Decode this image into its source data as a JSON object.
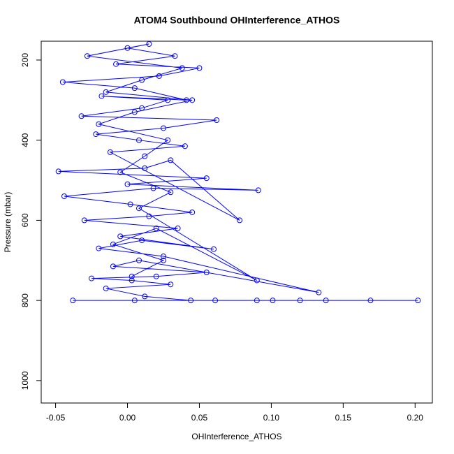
{
  "chart_data": {
    "type": "line",
    "title": "ATOM4 Southbound OHInterference_ATHOS",
    "x_label": "OHInterference_ATHOS",
    "y_label": "Pressure (mbar)",
    "xlim": [
      -0.06,
      0.212
    ],
    "ylim": [
      1056,
      153
    ],
    "grid": false,
    "marker": "open-circle",
    "xticks": [
      {
        "value": -0.05,
        "label": "-0.05"
      },
      {
        "value": 0,
        "label": "0.00"
      },
      {
        "value": 0.05,
        "label": "0.05"
      },
      {
        "value": 0.1,
        "label": "0.10"
      },
      {
        "value": 0.15,
        "label": "0.15"
      },
      {
        "value": 0.2,
        "label": "0.20"
      }
    ],
    "yticks": [
      200,
      400,
      600,
      800,
      1000
    ],
    "series": [
      {
        "color": "#0000ff",
        "x": [
          0.005,
          -0.038,
          0.202,
          0.169,
          0.138,
          0.12,
          0.101,
          0.09,
          0.061,
          0.044,
          0.012,
          -0.015,
          0.03,
          0.003,
          -0.025,
          0.02,
          0.055,
          -0.01,
          0.008,
          0.133,
          0.025,
          -0.02,
          0.01,
          0.06,
          -0.005,
          0.035,
          -0.03,
          0.015,
          0.045,
          0.002,
          -0.044,
          0.018,
          0.091,
          0.0,
          0.055,
          -0.048,
          0.012,
          0.03,
          0.078,
          -0.012,
          0.04,
          0.008,
          -0.022,
          0.025,
          0.062,
          -0.032,
          0.01,
          0.028,
          -0.018,
          0.041,
          0.005,
          -0.045,
          0.022,
          0.05,
          -0.008,
          0.033,
          0.0,
          0.015,
          -0.028,
          0.038,
          0.01,
          -0.015,
          0.045,
          0.005,
          -0.02,
          0.028,
          0.012,
          -0.005,
          0.03,
          0.008,
          0.09,
          0.02,
          -0.01,
          0.025,
          0.003
        ],
        "values": [
          800,
          800,
          800,
          800,
          800,
          800,
          800,
          800,
          800,
          800,
          790,
          770,
          760,
          750,
          745,
          740,
          730,
          715,
          700,
          780,
          690,
          670,
          650,
          672,
          640,
          620,
          600,
          590,
          580,
          560,
          540,
          520,
          525,
          510,
          495,
          478,
          470,
          450,
          600,
          430,
          415,
          400,
          385,
          370,
          350,
          340,
          320,
          300,
          290,
          300,
          270,
          255,
          240,
          220,
          210,
          190,
          170,
          160,
          190,
          220,
          250,
          280,
          300,
          330,
          360,
          400,
          440,
          480,
          530,
          570,
          750,
          620,
          660,
          700,
          740
        ]
      }
    ]
  }
}
